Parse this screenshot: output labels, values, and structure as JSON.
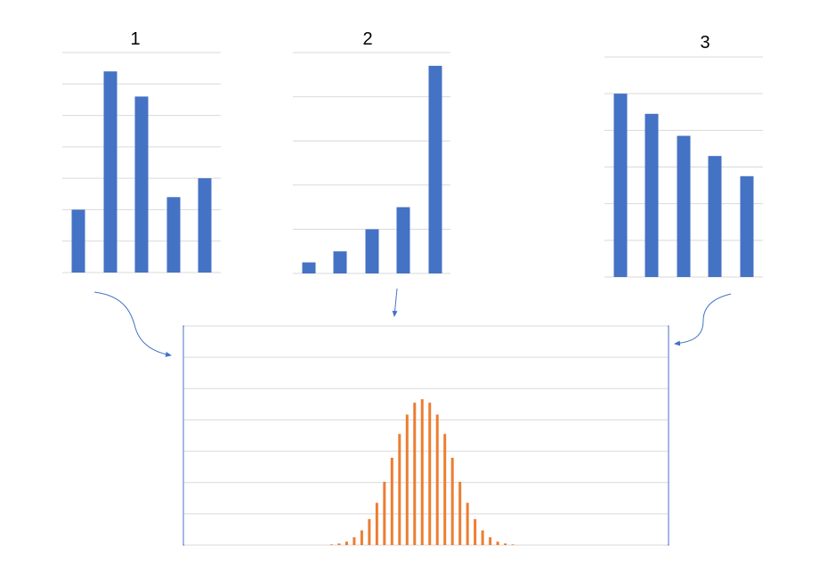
{
  "colors": {
    "blue_bars": "#4472C4",
    "orange_bars": "#ED7D31",
    "gridline": "#D9D9D9",
    "arrow": "#4472C4",
    "frame": "#4472C4"
  },
  "chart_data": [
    {
      "type": "bar",
      "title": "1",
      "categories": [
        "",
        "",
        "",
        "",
        ""
      ],
      "values": [
        2,
        6.4,
        5.6,
        2.4,
        3
      ],
      "ylim": [
        0,
        7
      ],
      "grid": true,
      "series_color": "#4472C4"
    },
    {
      "type": "bar",
      "title": "2",
      "categories": [
        "",
        "",
        "",
        "",
        ""
      ],
      "values": [
        0.25,
        0.5,
        1,
        1.5,
        4.7
      ],
      "ylim": [
        0,
        5
      ],
      "grid": true,
      "series_color": "#4472C4"
    },
    {
      "type": "bar",
      "title": "3",
      "categories": [
        "",
        "",
        "",
        "",
        ""
      ],
      "values": [
        5,
        4.45,
        3.85,
        3.3,
        2.75
      ],
      "ylim": [
        0,
        6
      ],
      "grid": true,
      "series_color": "#4472C4"
    },
    {
      "type": "bar",
      "title": "",
      "values": [
        0,
        0,
        0,
        0,
        0,
        0,
        0,
        0,
        0,
        0,
        0,
        0,
        0,
        0,
        0,
        0,
        0,
        0,
        0,
        0.02,
        0.05,
        0.11,
        0.25,
        0.47,
        0.83,
        1.35,
        2.02,
        2.79,
        3.55,
        4.17,
        4.55,
        4.66,
        4.55,
        4.17,
        3.55,
        2.79,
        2.02,
        1.35,
        0.83,
        0.47,
        0.25,
        0.11,
        0.05,
        0.02,
        0,
        0,
        0,
        0,
        0,
        0,
        0,
        0,
        0,
        0,
        0,
        0,
        0,
        0,
        0,
        0,
        0,
        0,
        0,
        0
      ],
      "ylim": [
        0,
        7
      ],
      "grid": true,
      "series_color": "#ED7D31"
    }
  ]
}
